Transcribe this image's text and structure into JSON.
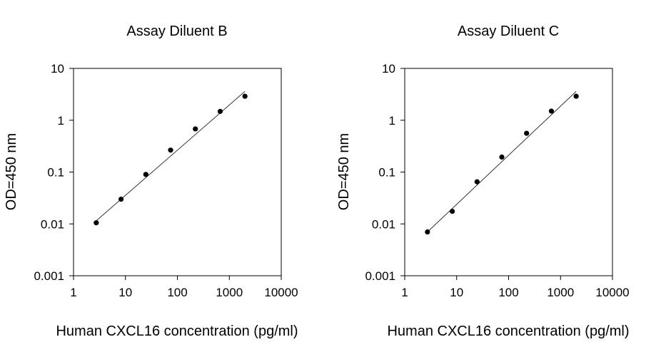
{
  "chart_data": [
    {
      "type": "scatter",
      "title": "Assay Diluent B",
      "xlabel": "Human CXCL16 concentration (pg/ml)",
      "ylabel": "OD=450 nm",
      "xscale": "log",
      "yscale": "log",
      "xlim": [
        1,
        10000
      ],
      "ylim": [
        0.001,
        10
      ],
      "xticks": [
        "1",
        "10",
        "100",
        "1000",
        "10000"
      ],
      "yticks": [
        "0.001",
        "0.01",
        "0.1",
        "1",
        "10"
      ],
      "grid": false,
      "points": [
        {
          "x": 2.74,
          "y": 0.0105
        },
        {
          "x": 8.23,
          "y": 0.03
        },
        {
          "x": 24.7,
          "y": 0.09
        },
        {
          "x": 74.1,
          "y": 0.265
        },
        {
          "x": 222,
          "y": 0.68
        },
        {
          "x": 667,
          "y": 1.48
        },
        {
          "x": 2000,
          "y": 2.9
        }
      ],
      "fit_line": {
        "x": [
          2.74,
          2000
        ],
        "y": [
          0.0115,
          3.6
        ]
      }
    },
    {
      "type": "scatter",
      "title": "Assay Diluent C",
      "xlabel": "Human CXCL16 concentration (pg/ml)",
      "ylabel": "OD=450 nm",
      "xscale": "log",
      "yscale": "log",
      "xlim": [
        1,
        10000
      ],
      "ylim": [
        0.001,
        10
      ],
      "xticks": [
        "1",
        "10",
        "100",
        "1000",
        "10000"
      ],
      "yticks": [
        "0.001",
        "0.01",
        "0.1",
        "1",
        "10"
      ],
      "grid": false,
      "points": [
        {
          "x": 2.74,
          "y": 0.007
        },
        {
          "x": 8.23,
          "y": 0.0175
        },
        {
          "x": 24.7,
          "y": 0.065
        },
        {
          "x": 74.1,
          "y": 0.195
        },
        {
          "x": 222,
          "y": 0.56
        },
        {
          "x": 667,
          "y": 1.5
        },
        {
          "x": 2000,
          "y": 2.9
        }
      ],
      "fit_line": {
        "x": [
          2.74,
          2000
        ],
        "y": [
          0.007,
          3.6
        ]
      }
    }
  ]
}
